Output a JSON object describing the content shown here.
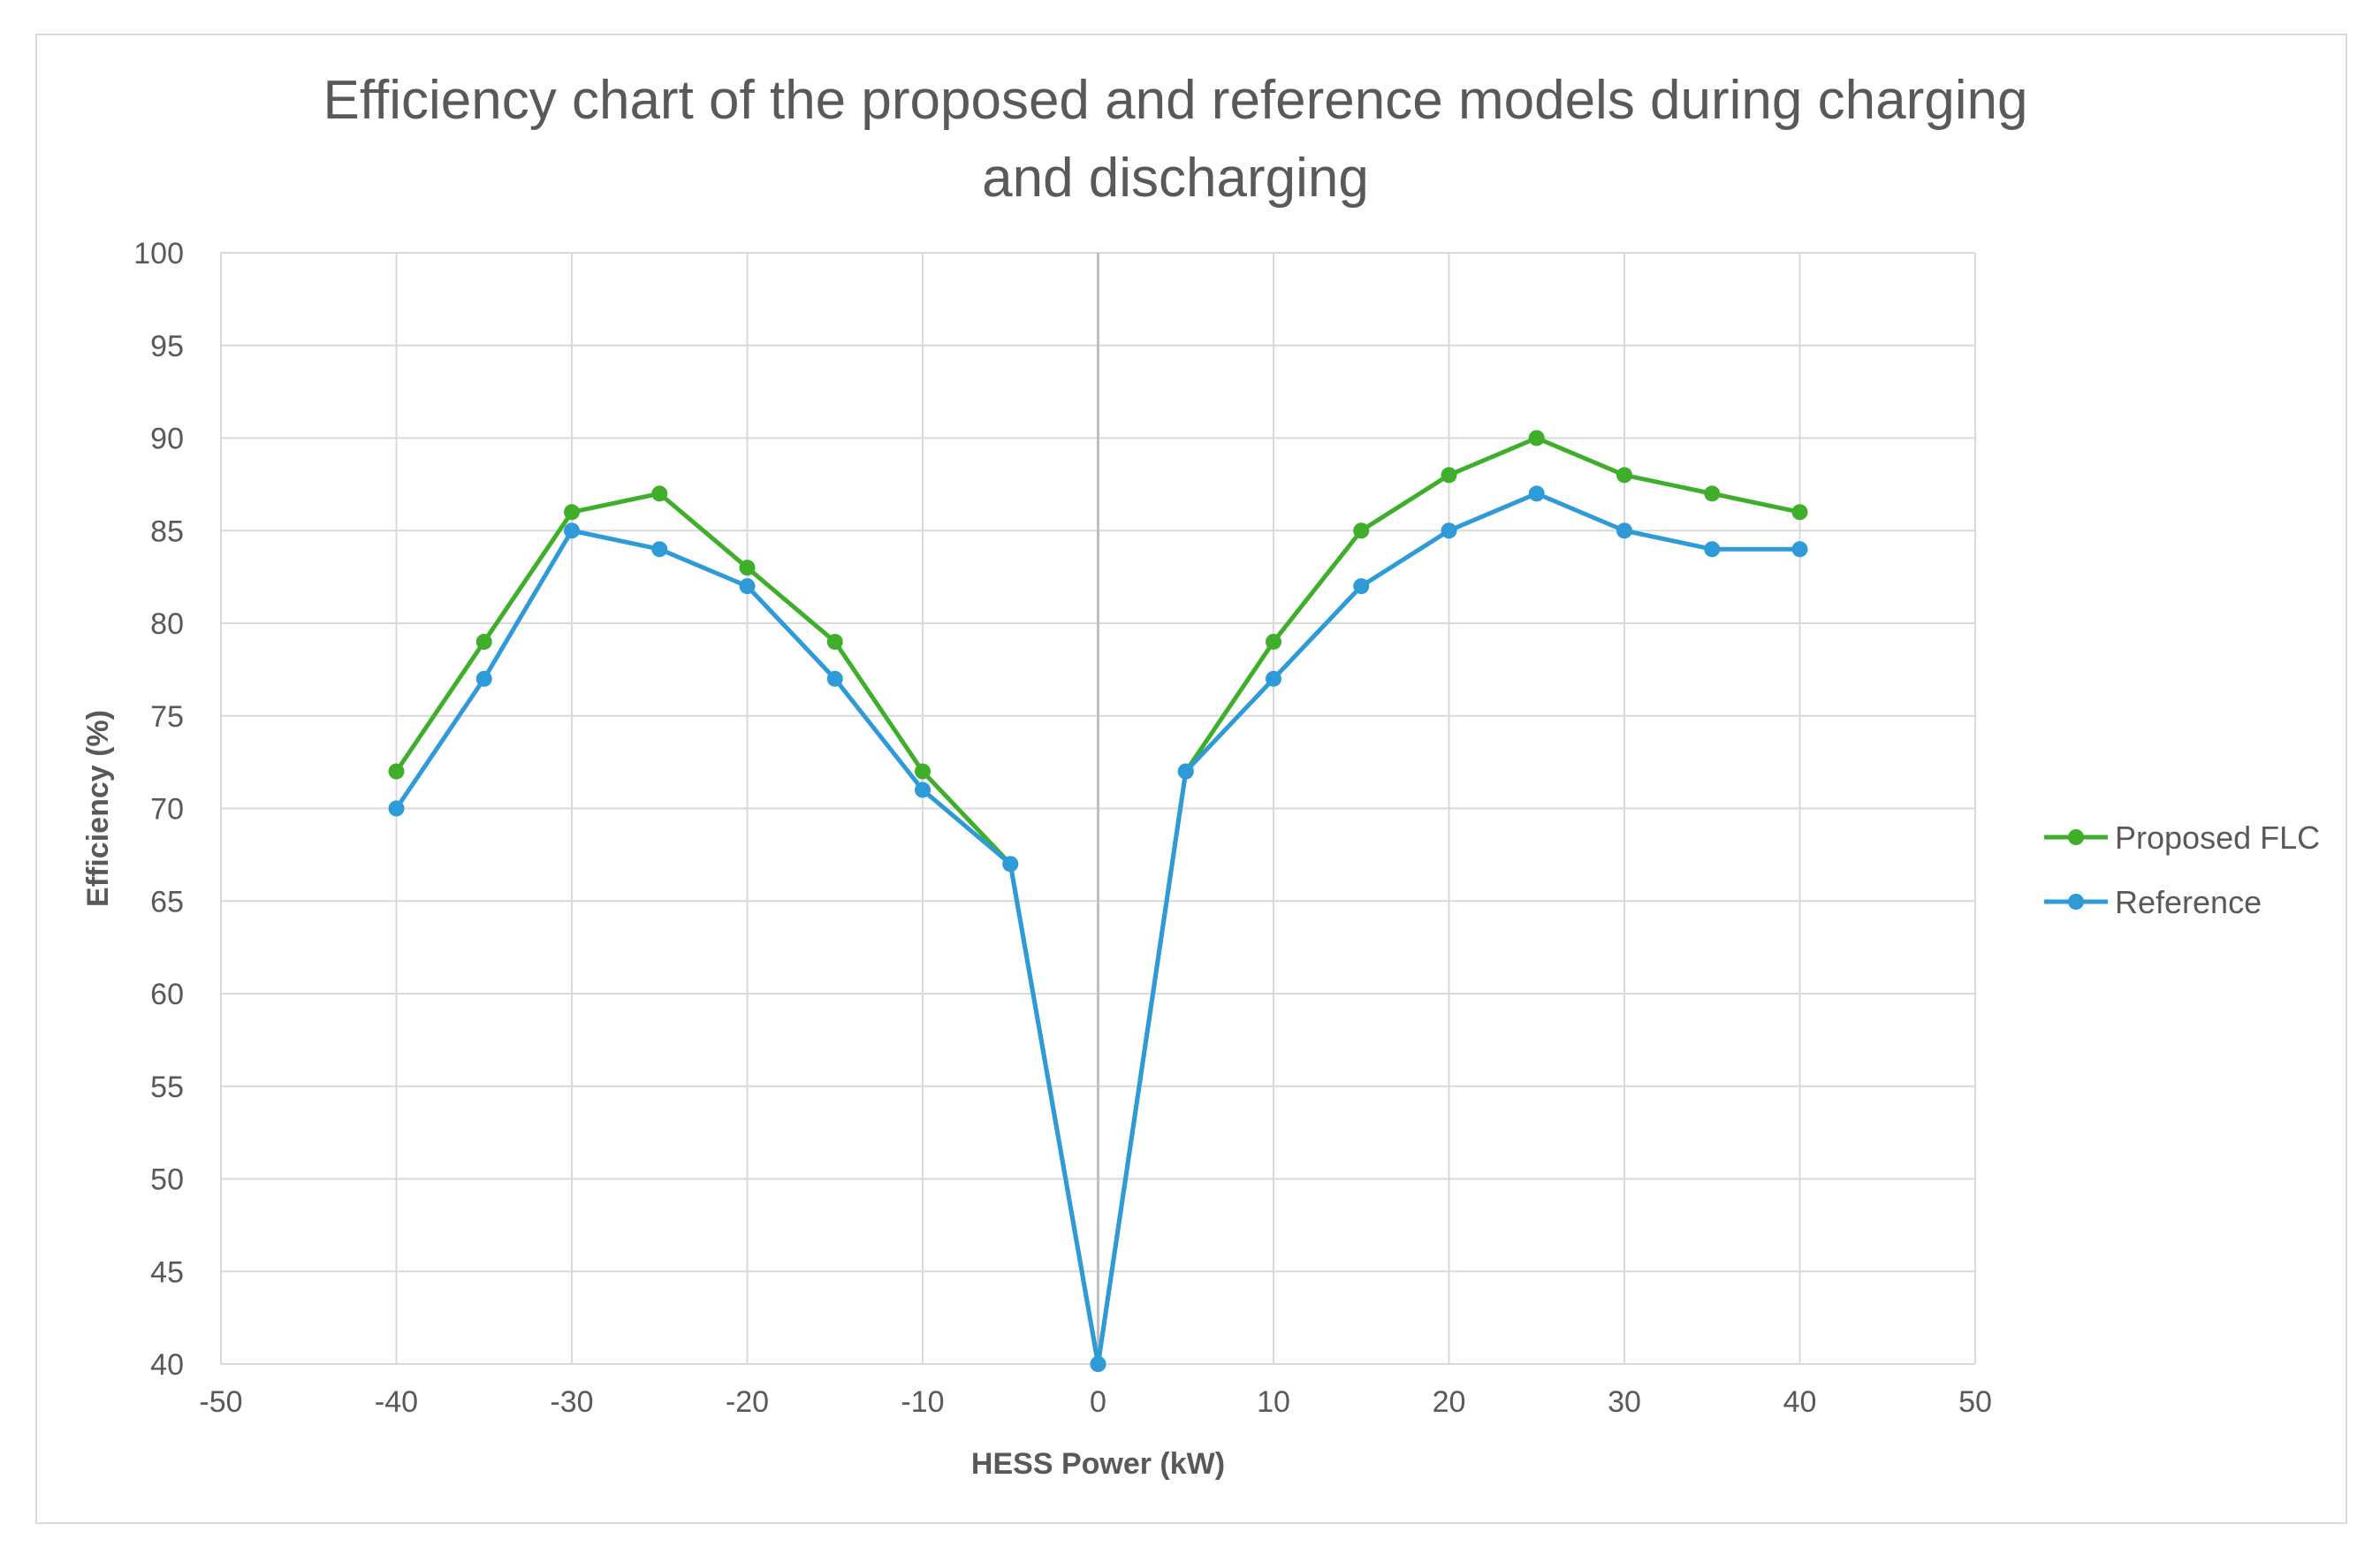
{
  "chart_data": {
    "type": "line",
    "title": "Efficiency chart of the proposed and reference models during charging and discharging",
    "title_lines": [
      "Efficiency chart of the proposed and reference models during charging",
      "and discharging"
    ],
    "xlabel": "HESS Power (kW)",
    "ylabel": "Efficiency (%)",
    "xlim": [
      -50,
      50
    ],
    "ylim": [
      40,
      100
    ],
    "xticks": [
      -50,
      -40,
      -30,
      -20,
      -10,
      0,
      10,
      20,
      30,
      40,
      50
    ],
    "yticks": [
      40,
      45,
      50,
      55,
      60,
      65,
      70,
      75,
      80,
      85,
      90,
      95,
      100
    ],
    "grid": true,
    "legend_position": "right",
    "x": [
      -40,
      -35,
      -30,
      -25,
      -20,
      -15,
      -10,
      -5,
      0,
      5,
      10,
      15,
      20,
      25,
      30,
      35,
      40
    ],
    "series": [
      {
        "name": "Proposed FLC",
        "color": "#3fae2a",
        "values": [
          72,
          79,
          86,
          87,
          83,
          79,
          72,
          67,
          40,
          72,
          79,
          85,
          88,
          90,
          88,
          87,
          86
        ]
      },
      {
        "name": "Reference",
        "color": "#2e9ad8",
        "values": [
          70,
          77,
          85,
          84,
          82,
          77,
          71,
          67,
          40,
          72,
          77,
          82,
          85,
          87,
          85,
          84,
          84
        ]
      }
    ]
  }
}
